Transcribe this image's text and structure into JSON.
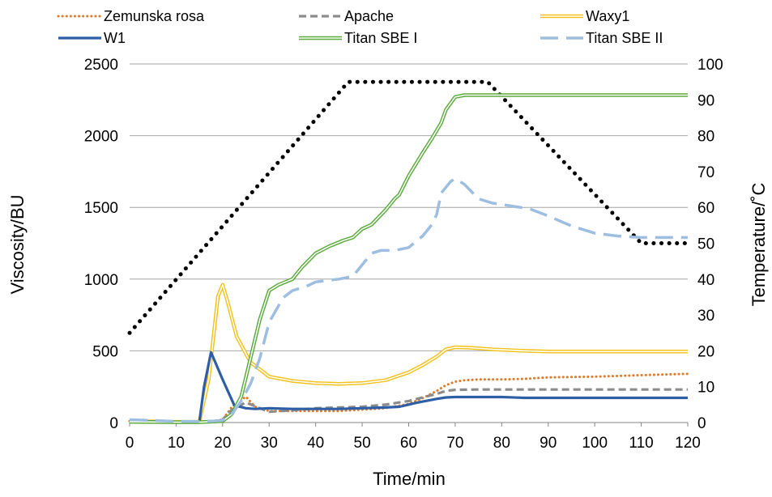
{
  "chart_data": {
    "type": "line",
    "xlabel": "Time/min",
    "ylabel": "Viscosity/BU",
    "y2label": "Temperature/˚C",
    "xlim": [
      0,
      120
    ],
    "ylim": [
      0,
      2500
    ],
    "y2lim": [
      0,
      100
    ],
    "x_ticks": [
      "0",
      "10",
      "20",
      "30",
      "40",
      "50",
      "60",
      "70",
      "80",
      "90",
      "100",
      "110",
      "120"
    ],
    "y_ticks": [
      "0",
      "500",
      "1000",
      "1500",
      "2000",
      "2500"
    ],
    "y2_ticks": [
      "0",
      "10",
      "20",
      "30",
      "40",
      "50",
      "60",
      "70",
      "80",
      "90",
      "100"
    ],
    "grid": "horizontal",
    "legend_position": "top",
    "series": [
      {
        "name": "Zemunska rosa",
        "axis": "left",
        "color": "#E07A2A",
        "style": "dotted",
        "points": [
          [
            0,
            10
          ],
          [
            10,
            5
          ],
          [
            15,
            5
          ],
          [
            18,
            10
          ],
          [
            20,
            20
          ],
          [
            22,
            110
          ],
          [
            25,
            180
          ],
          [
            27,
            110
          ],
          [
            30,
            80
          ],
          [
            35,
            80
          ],
          [
            40,
            80
          ],
          [
            45,
            80
          ],
          [
            50,
            90
          ],
          [
            55,
            100
          ],
          [
            60,
            130
          ],
          [
            63,
            170
          ],
          [
            66,
            220
          ],
          [
            68,
            260
          ],
          [
            70,
            285
          ],
          [
            72,
            295
          ],
          [
            75,
            300
          ],
          [
            80,
            300
          ],
          [
            85,
            305
          ],
          [
            90,
            315
          ],
          [
            100,
            320
          ],
          [
            110,
            330
          ],
          [
            120,
            340
          ]
        ]
      },
      {
        "name": "Apache",
        "axis": "left",
        "color": "#8C8C8C",
        "style": "dashed",
        "points": [
          [
            0,
            10
          ],
          [
            10,
            5
          ],
          [
            15,
            5
          ],
          [
            18,
            10
          ],
          [
            20,
            20
          ],
          [
            22,
            90
          ],
          [
            25,
            140
          ],
          [
            28,
            100
          ],
          [
            30,
            75
          ],
          [
            35,
            85
          ],
          [
            40,
            100
          ],
          [
            45,
            105
          ],
          [
            50,
            110
          ],
          [
            55,
            125
          ],
          [
            60,
            150
          ],
          [
            63,
            175
          ],
          [
            66,
            200
          ],
          [
            68,
            220
          ],
          [
            70,
            228
          ],
          [
            75,
            230
          ],
          [
            80,
            230
          ],
          [
            90,
            230
          ],
          [
            100,
            230
          ],
          [
            110,
            230
          ],
          [
            120,
            230
          ]
        ]
      },
      {
        "name": "Waxy1",
        "axis": "left",
        "color": "#F2C21B",
        "style": "double",
        "points": [
          [
            0,
            10
          ],
          [
            10,
            5
          ],
          [
            15,
            5
          ],
          [
            17,
            300
          ],
          [
            19,
            880
          ],
          [
            20,
            960
          ],
          [
            21,
            850
          ],
          [
            23,
            600
          ],
          [
            26,
            420
          ],
          [
            30,
            320
          ],
          [
            35,
            290
          ],
          [
            40,
            275
          ],
          [
            45,
            270
          ],
          [
            50,
            275
          ],
          [
            55,
            295
          ],
          [
            60,
            350
          ],
          [
            63,
            400
          ],
          [
            66,
            460
          ],
          [
            68,
            510
          ],
          [
            70,
            525
          ],
          [
            73,
            522
          ],
          [
            78,
            510
          ],
          [
            85,
            500
          ],
          [
            90,
            495
          ],
          [
            100,
            495
          ],
          [
            110,
            495
          ],
          [
            120,
            495
          ]
        ]
      },
      {
        "name": "W1",
        "axis": "left",
        "color": "#2E5EA6",
        "style": "solid",
        "points": [
          [
            0,
            10
          ],
          [
            10,
            5
          ],
          [
            15,
            5
          ],
          [
            16,
            250
          ],
          [
            17.5,
            490
          ],
          [
            20,
            300
          ],
          [
            22.5,
            120
          ],
          [
            25,
            100
          ],
          [
            27,
            95
          ],
          [
            30,
            100
          ],
          [
            35,
            95
          ],
          [
            40,
            95
          ],
          [
            45,
            95
          ],
          [
            50,
            100
          ],
          [
            55,
            105
          ],
          [
            58,
            110
          ],
          [
            62,
            140
          ],
          [
            66,
            165
          ],
          [
            68,
            175
          ],
          [
            70,
            178
          ],
          [
            75,
            178
          ],
          [
            80,
            178
          ],
          [
            85,
            172
          ],
          [
            90,
            172
          ],
          [
            100,
            172
          ],
          [
            110,
            172
          ],
          [
            120,
            172
          ]
        ]
      },
      {
        "name": "Titan SBE I",
        "axis": "left",
        "color": "#5AAA3C",
        "style": "double",
        "points": [
          [
            0,
            5
          ],
          [
            10,
            2
          ],
          [
            15,
            2
          ],
          [
            20,
            10
          ],
          [
            22,
            60
          ],
          [
            24,
            180
          ],
          [
            26,
            450
          ],
          [
            28,
            720
          ],
          [
            30,
            920
          ],
          [
            32,
            960
          ],
          [
            35,
            1000
          ],
          [
            37,
            1080
          ],
          [
            40,
            1180
          ],
          [
            43,
            1230
          ],
          [
            46,
            1270
          ],
          [
            48,
            1290
          ],
          [
            50,
            1350
          ],
          [
            52,
            1380
          ],
          [
            55,
            1480
          ],
          [
            57,
            1560
          ],
          [
            58,
            1590
          ],
          [
            60,
            1720
          ],
          [
            63,
            1880
          ],
          [
            65,
            1980
          ],
          [
            67,
            2090
          ],
          [
            68,
            2180
          ],
          [
            70,
            2270
          ],
          [
            72,
            2283
          ],
          [
            80,
            2283
          ],
          [
            90,
            2283
          ],
          [
            100,
            2283
          ],
          [
            110,
            2283
          ],
          [
            120,
            2283
          ]
        ]
      },
      {
        "name": "Titan SBE II",
        "axis": "left",
        "color": "#9DBEE0",
        "style": "longdash",
        "points": [
          [
            0,
            20
          ],
          [
            10,
            8
          ],
          [
            15,
            8
          ],
          [
            18,
            10
          ],
          [
            20,
            15
          ],
          [
            22,
            60
          ],
          [
            24,
            150
          ],
          [
            26,
            270
          ],
          [
            28,
            450
          ],
          [
            30,
            700
          ],
          [
            33,
            870
          ],
          [
            35,
            920
          ],
          [
            38,
            950
          ],
          [
            40,
            980
          ],
          [
            45,
            1000
          ],
          [
            48,
            1020
          ],
          [
            50,
            1100
          ],
          [
            52,
            1180
          ],
          [
            54,
            1200
          ],
          [
            57,
            1200
          ],
          [
            60,
            1220
          ],
          [
            63,
            1300
          ],
          [
            65,
            1380
          ],
          [
            66,
            1450
          ],
          [
            67,
            1600
          ],
          [
            69,
            1680
          ],
          [
            70,
            1700
          ],
          [
            72,
            1660
          ],
          [
            75,
            1560
          ],
          [
            78,
            1530
          ],
          [
            82,
            1510
          ],
          [
            86,
            1490
          ],
          [
            90,
            1440
          ],
          [
            95,
            1370
          ],
          [
            100,
            1320
          ],
          [
            105,
            1300
          ],
          [
            110,
            1290
          ],
          [
            115,
            1290
          ],
          [
            120,
            1290
          ]
        ]
      },
      {
        "axis": "right",
        "color": "#000000",
        "style": "heavydot",
        "points": [
          [
            0,
            25
          ],
          [
            47,
            95
          ],
          [
            77,
            95
          ],
          [
            110,
            50
          ],
          [
            120,
            50
          ]
        ]
      }
    ]
  }
}
